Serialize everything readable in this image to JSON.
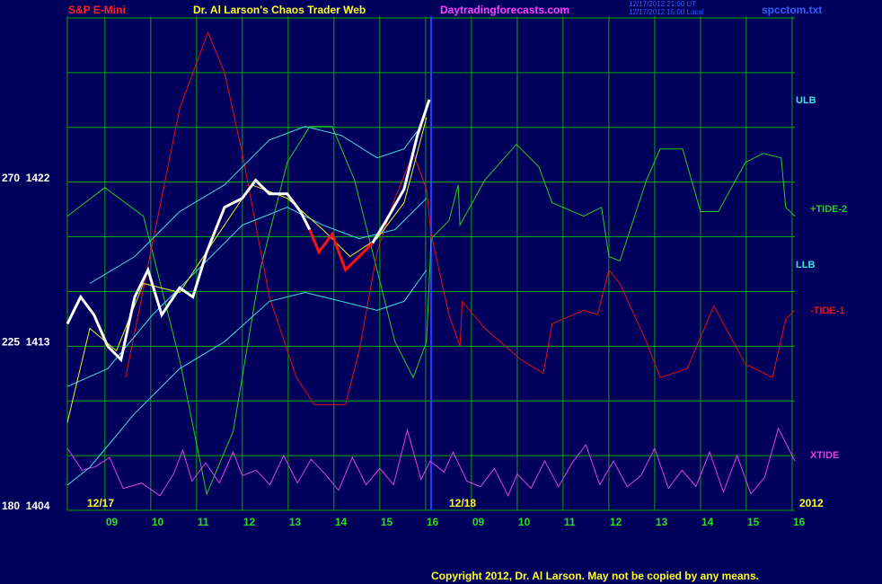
{
  "chart_data": {
    "type": "line",
    "header": {
      "symbol": "S&P E-Mini",
      "title": "Dr. Al Larson's Chaos Trader Web",
      "site": "Daytradingforecasts.com",
      "time_ut": "12/17/2012 21:00 UT",
      "time_local": "12/17/2012 15:00 Local",
      "file": "spcctom.txt"
    },
    "date_labels": [
      "12/17",
      "12/18",
      "2012"
    ],
    "copyright": "Copyright 2012, Dr. Al Larson. May not be copied by any means.",
    "xlim": [
      -0.82,
      15.06
    ],
    "xticks": [
      {
        "value": 0,
        "label": "09"
      },
      {
        "value": 1,
        "label": "10"
      },
      {
        "value": 2,
        "label": "11"
      },
      {
        "value": 3,
        "label": "12"
      },
      {
        "value": 4,
        "label": "13"
      },
      {
        "value": 5,
        "label": "14"
      },
      {
        "value": 6,
        "label": "15"
      },
      {
        "value": 7,
        "label": "16"
      },
      {
        "value": 8,
        "label": "09"
      },
      {
        "value": 9,
        "label": "10"
      },
      {
        "value": 10,
        "label": "11"
      },
      {
        "value": 11,
        "label": "12"
      },
      {
        "value": 12,
        "label": "13"
      },
      {
        "value": 13,
        "label": "14"
      },
      {
        "value": 14,
        "label": "15"
      },
      {
        "value": 15,
        "label": "16"
      }
    ],
    "ylim": [
      1404,
      1431
    ],
    "yticks": [
      {
        "value": 1404,
        "label": "180  1404"
      },
      {
        "value": 1413,
        "label": "225  1413"
      },
      {
        "value": 1422,
        "label": "270  1422"
      }
    ],
    "ygrid": [
      1404,
      1407,
      1410,
      1413,
      1416,
      1419,
      1422,
      1425,
      1428,
      1431
    ],
    "grid": true,
    "grid_color": "#00a800",
    "series": [
      {
        "name": "+TIDE-2",
        "color": "#22cc22",
        "x": [
          -0.82,
          0,
          0.84,
          1.63,
          2.22,
          2.8,
          3.39,
          3.98,
          4.47,
          4.96,
          5.45,
          5.94,
          6.33,
          6.73,
          7.02,
          7.12,
          7.51,
          7.71,
          7.75,
          8.29,
          8.98,
          9.47,
          9.76,
          10.45,
          10.84,
          11.0,
          11.24,
          11.82,
          12.12,
          12.61,
          13.0,
          13.39,
          13.98,
          14.37,
          14.76,
          14.86,
          15.06
        ],
        "values": [
          1420.13,
          1421.7,
          1420.13,
          1412.26,
          1404.89,
          1408.33,
          1417.18,
          1423.08,
          1425.05,
          1425.05,
          1422.1,
          1417.18,
          1413.25,
          1411.28,
          1413.25,
          1418.9,
          1419.89,
          1421.85,
          1419.64,
          1422.1,
          1424.07,
          1422.84,
          1420.87,
          1420.13,
          1420.62,
          1417.92,
          1417.67,
          1422.1,
          1423.82,
          1423.82,
          1420.38,
          1420.38,
          1423.08,
          1423.57,
          1423.33,
          1420.62,
          1420.13
        ]
      },
      {
        "name": "-TIDE-1",
        "color": "#e01010",
        "x": [
          0.45,
          1.04,
          1.63,
          2.25,
          2.61,
          3.0,
          3.59,
          4.18,
          4.57,
          5.25,
          5.55,
          5.94,
          6.33,
          6.73,
          7.02,
          7.12,
          7.51,
          7.75,
          7.8,
          8.29,
          9.08,
          9.57,
          9.76,
          10.45,
          10.75,
          11.0,
          11.24,
          11.82,
          12.12,
          12.71,
          13.29,
          13.98,
          14.57,
          14.86,
          15.06
        ],
        "values": [
          1411.28,
          1418.66,
          1426.03,
          1430.21,
          1428.0,
          1423.57,
          1415.7,
          1411.28,
          1409.8,
          1409.8,
          1412.75,
          1418.16,
          1421.11,
          1423.57,
          1421.61,
          1419.15,
          1414.72,
          1413.0,
          1415.46,
          1413.98,
          1412.26,
          1411.52,
          1414.23,
          1414.97,
          1414.72,
          1417.18,
          1416.44,
          1413.25,
          1411.28,
          1411.77,
          1415.21,
          1412.02,
          1411.28,
          1414.48,
          1414.97
        ]
      },
      {
        "name": "XTIDE",
        "color": "#e040e0",
        "x": [
          -0.82,
          -0.5,
          -0.2,
          0.1,
          0.4,
          0.8,
          1.2,
          1.5,
          1.7,
          1.9,
          2.2,
          2.5,
          2.8,
          3.0,
          3.3,
          3.6,
          3.9,
          4.2,
          4.5,
          4.8,
          5.1,
          5.4,
          5.7,
          6.0,
          6.3,
          6.6,
          6.9,
          7.1,
          7.4,
          7.6,
          7.9,
          8.2,
          8.5,
          8.8,
          9.0,
          9.3,
          9.6,
          9.9,
          10.2,
          10.5,
          10.8,
          11.1,
          11.4,
          11.7,
          12.0,
          12.3,
          12.6,
          12.9,
          13.2,
          13.5,
          13.8,
          14.1,
          14.4,
          14.7,
          15.06
        ],
        "values": [
          1407.4,
          1406.2,
          1406.4,
          1406.9,
          1405.2,
          1405.5,
          1404.8,
          1406.0,
          1407.3,
          1405.6,
          1406.6,
          1405.5,
          1407.2,
          1405.9,
          1406.2,
          1405.4,
          1407.0,
          1405.5,
          1406.8,
          1406.0,
          1405.1,
          1406.9,
          1405.4,
          1406.3,
          1405.4,
          1408.4,
          1405.7,
          1406.7,
          1406.1,
          1407.2,
          1405.6,
          1405.3,
          1406.3,
          1404.8,
          1406.0,
          1405.2,
          1406.7,
          1405.3,
          1406.6,
          1407.6,
          1405.4,
          1406.7,
          1405.3,
          1405.9,
          1407.4,
          1405.2,
          1406.2,
          1405.3,
          1407.2,
          1405.0,
          1407.0,
          1404.9,
          1405.8,
          1408.5,
          1406.7
        ]
      },
      {
        "name": "ULB",
        "color": "#40e0e0",
        "x": [
          -0.33,
          0.65,
          1.63,
          2.61,
          3.59,
          4.37,
          5.16,
          5.94,
          6.53,
          6.82
        ],
        "values": [
          1416.44,
          1417.92,
          1420.38,
          1421.85,
          1424.31,
          1425.05,
          1424.56,
          1423.33,
          1423.82,
          1424.8
        ]
      },
      {
        "color": "#40e0e0",
        "x": [
          -0.82,
          0.06,
          1.04,
          2.02,
          3.0,
          3.98,
          4.76,
          5.55,
          6.33,
          7.02
        ],
        "values": [
          1410.79,
          1411.77,
          1414.72,
          1417.18,
          1419.64,
          1420.62,
          1419.64,
          1418.9,
          1419.39,
          1421.11
        ]
      },
      {
        "name": "LLB",
        "color": "#40e0e0",
        "x": [
          -0.82,
          -0.33,
          0.65,
          1.63,
          2.61,
          3.59,
          4.37,
          5.16,
          5.94,
          6.53,
          7.02
        ],
        "values": [
          1405.38,
          1406.36,
          1409.31,
          1411.77,
          1413.25,
          1415.46,
          1415.95,
          1415.46,
          1414.97,
          1415.46,
          1417.18
        ]
      },
      {
        "color": "#f0f020",
        "x": [
          -0.82,
          -0.33,
          0.25,
          0.84,
          1.63,
          2.41,
          3.2,
          3.98,
          4.76,
          5.35,
          5.94,
          6.53,
          7.02
        ],
        "values": [
          1408.82,
          1413.98,
          1412.75,
          1416.44,
          1415.95,
          1418.9,
          1421.85,
          1421.11,
          1419.39,
          1417.92,
          1418.9,
          1420.87,
          1425.54
        ]
      },
      {
        "color": "#ffffff",
        "width": 3,
        "x": [
          -0.82,
          -0.53,
          -0.24,
          0.06,
          0.35,
          0.65,
          0.94,
          1.24,
          1.63,
          1.92,
          2.22,
          2.61,
          3.0,
          3.29,
          3.59,
          3.98,
          4.27,
          4.47,
          5.0,
          5.84,
          6.14,
          6.53,
          6.82,
          7.08
        ],
        "values": [
          1414.23,
          1415.7,
          1414.72,
          1413.0,
          1412.26,
          1415.7,
          1417.18,
          1414.72,
          1416.2,
          1415.7,
          1418.16,
          1420.62,
          1421.11,
          1422.1,
          1421.36,
          1421.36,
          1420.38,
          1419.39,
          null,
          1418.66,
          1419.89,
          1421.61,
          1424.56,
          1426.52
        ]
      },
      {
        "color": "#ff1010",
        "width": 3,
        "x": [
          4.47,
          4.67,
          4.96,
          5.25,
          5.55,
          5.84
        ],
        "values": [
          1419.39,
          1418.16,
          1419.15,
          1417.18,
          1417.92,
          1418.66
        ]
      }
    ]
  }
}
